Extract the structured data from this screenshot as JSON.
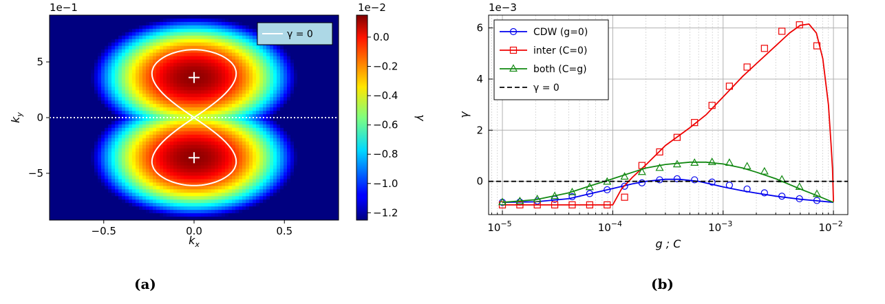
{
  "chart_data": [
    {
      "id": "a",
      "type": "heatmap",
      "panel_label": "(a)",
      "xlabel": "k_x",
      "ylabel": "k_y",
      "x_range": [
        -0.8,
        0.8
      ],
      "y_range": [
        -0.92,
        0.92
      ],
      "x_ticks": [
        {
          "value": -0.5,
          "label": "−0.5"
        },
        {
          "value": 0.0,
          "label": "0.0"
        },
        {
          "value": 0.5,
          "label": "0.5"
        }
      ],
      "y_ticks": [
        {
          "value": -0.5,
          "label": "−5"
        },
        {
          "value": 0.0,
          "label": "0"
        },
        {
          "value": 0.5,
          "label": "5"
        }
      ],
      "y_scale_label": "1e−1",
      "colormap": "jet",
      "colorbar": {
        "label": "γ",
        "scale_label": "1e−2",
        "min": -1.25,
        "max": 0.15,
        "ticks": [
          {
            "value": 0.0,
            "label": "0.0"
          },
          {
            "value": -0.2,
            "label": "−0.2"
          },
          {
            "value": -0.4,
            "label": "−0.4"
          },
          {
            "value": -0.6,
            "label": "−0.6"
          },
          {
            "value": -0.8,
            "label": "−0.8"
          },
          {
            "value": -1.0,
            "label": "−1.0"
          },
          {
            "value": -1.2,
            "label": "−1.2"
          }
        ]
      },
      "maxima": [
        {
          "kx": 0.0,
          "ky": 0.36
        },
        {
          "kx": 0.0,
          "ky": -0.36
        }
      ],
      "contour_level": 0,
      "legend": [
        {
          "label": "γ = 0",
          "color": "#ffffff"
        }
      ],
      "legend_position": "top-right",
      "dotted_line_ky": 0.0
    },
    {
      "id": "b",
      "type": "line",
      "panel_label": "(b)",
      "xlabel": "g ; C",
      "ylabel": "γ",
      "x_scale": "log",
      "x_range": [
        7.5e-06,
        0.0135
      ],
      "y_range": [
        -1.3,
        6.5
      ],
      "y_scale_label": "1e−3",
      "x_ticks": [
        {
          "value": 1e-05,
          "base": "10",
          "exp": "−5"
        },
        {
          "value": 0.0001,
          "base": "10",
          "exp": "−4"
        },
        {
          "value": 0.001,
          "base": "10",
          "exp": "−3"
        },
        {
          "value": 0.01,
          "base": "10",
          "exp": "−2"
        }
      ],
      "y_ticks": [
        {
          "value": 0,
          "label": "0"
        },
        {
          "value": 2,
          "label": "2"
        },
        {
          "value": 4,
          "label": "4"
        },
        {
          "value": 6,
          "label": "6"
        }
      ],
      "grid": true,
      "legend_position": "top-left",
      "series": [
        {
          "name": "CDW (g=0)",
          "color": "#0000ee",
          "marker": "circle",
          "x": [
            1e-05,
            2e-05,
            4e-05,
            6e-05,
            0.0001,
            0.00015,
            0.0002,
            0.0003,
            0.0004,
            0.0006,
            0.0008,
            0.001,
            0.0015,
            0.002,
            0.003,
            0.005,
            0.007,
            0.01
          ],
          "y": [
            -0.82,
            -0.8,
            -0.68,
            -0.5,
            -0.28,
            -0.1,
            0.0,
            0.08,
            0.08,
            0.0,
            -0.12,
            -0.22,
            -0.37,
            -0.46,
            -0.58,
            -0.7,
            -0.76,
            -0.82
          ],
          "marker_x": [
            1e-05,
            1.44e-05,
            2.07e-05,
            2.98e-05,
            4.29e-05,
            6.18e-05,
            8.9e-05,
            0.000128,
            0.000184,
            0.000266,
            0.000383,
            0.000551,
            0.000794,
            0.00114,
            0.00165,
            0.00237,
            0.00341,
            0.00492,
            0.00708
          ],
          "marker_y": [
            -0.82,
            -0.81,
            -0.77,
            -0.7,
            -0.6,
            -0.48,
            -0.33,
            -0.19,
            -0.06,
            0.06,
            0.1,
            0.06,
            -0.03,
            -0.15,
            -0.3,
            -0.45,
            -0.58,
            -0.68,
            -0.75
          ]
        },
        {
          "name": "inter (C=0)",
          "color": "#ee0000",
          "marker": "square",
          "x": [
            1e-05,
            2e-05,
            4e-05,
            8e-05,
            0.0001,
            0.00012,
            0.00015,
            0.0002,
            0.0003,
            0.0005,
            0.0007,
            0.001,
            0.0015,
            0.002,
            0.003,
            0.004,
            0.005,
            0.006,
            0.007,
            0.008,
            0.009,
            0.0095,
            0.0098,
            0.01
          ],
          "y": [
            -0.92,
            -0.92,
            -0.92,
            -0.92,
            -0.92,
            -0.3,
            0.15,
            0.65,
            1.4,
            2.1,
            2.6,
            3.3,
            4.1,
            4.6,
            5.3,
            5.8,
            6.1,
            6.15,
            5.8,
            4.8,
            3.0,
            1.5,
            0.5,
            -0.8
          ],
          "marker_x": [
            1e-05,
            1.44e-05,
            2.07e-05,
            2.98e-05,
            4.29e-05,
            6.18e-05,
            8.9e-05,
            0.000128,
            0.000184,
            0.000266,
            0.000383,
            0.000551,
            0.000794,
            0.00114,
            0.00165,
            0.00237,
            0.00341,
            0.00492,
            0.00708
          ],
          "marker_y": [
            -0.92,
            -0.92,
            -0.92,
            -0.92,
            -0.92,
            -0.92,
            -0.92,
            -0.62,
            0.62,
            1.15,
            1.72,
            2.3,
            2.97,
            3.72,
            4.47,
            5.2,
            5.87,
            6.12,
            5.3
          ]
        },
        {
          "name": "both (C=g)",
          "color": "#118811",
          "marker": "triangle",
          "x": [
            1e-05,
            2e-05,
            4e-05,
            6e-05,
            0.0001,
            0.00015,
            0.0002,
            0.0003,
            0.0005,
            0.0007,
            0.001,
            0.0015,
            0.002,
            0.003,
            0.005,
            0.007,
            0.01
          ],
          "y": [
            -0.82,
            -0.72,
            -0.45,
            -0.2,
            0.1,
            0.35,
            0.52,
            0.66,
            0.75,
            0.75,
            0.68,
            0.52,
            0.36,
            0.1,
            -0.3,
            -0.55,
            -0.82
          ],
          "marker_x": [
            1e-05,
            1.44e-05,
            2.07e-05,
            2.98e-05,
            4.29e-05,
            6.18e-05,
            8.9e-05,
            0.000128,
            0.000184,
            0.000266,
            0.000383,
            0.000551,
            0.000794,
            0.00114,
            0.00165,
            0.00237,
            0.00341,
            0.00492,
            0.00708
          ],
          "marker_y": [
            -0.82,
            -0.78,
            -0.7,
            -0.58,
            -0.43,
            -0.23,
            -0.02,
            0.18,
            0.36,
            0.52,
            0.66,
            0.72,
            0.75,
            0.72,
            0.58,
            0.38,
            0.07,
            -0.22,
            -0.5
          ]
        },
        {
          "name": "γ = 0",
          "color": "#000000",
          "marker": "none",
          "dashed": true,
          "x": [
            7.5e-06,
            0.0135
          ],
          "y": [
            0,
            0
          ]
        }
      ]
    }
  ]
}
